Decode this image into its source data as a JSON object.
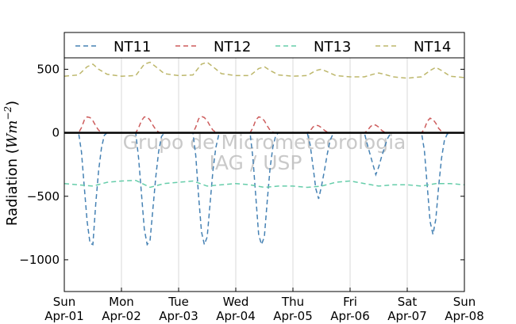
{
  "chart_data": {
    "type": "line",
    "title": "",
    "xlabel": "",
    "ylabel": "Radiation (Wm⁻²)",
    "ylabel_main": "Radiation (",
    "ylabel_unit": "Wm",
    "ylabel_exp": "−2",
    "ylabel_close": ")",
    "xlim": [
      0,
      7
    ],
    "ylim": [
      -1250,
      590
    ],
    "yticks": [
      500,
      0,
      -500,
      -1000
    ],
    "ytick_labels": [
      "500",
      "0",
      "−500",
      "−1000"
    ],
    "xticks": [
      0,
      1,
      2,
      3,
      4,
      5,
      6,
      7
    ],
    "xtick_labels_day": [
      "Sun",
      "Mon",
      "Tue",
      "Wed",
      "Thu",
      "Fri",
      "Sat",
      "Sun"
    ],
    "xtick_labels_date": [
      "Apr-01",
      "Apr-02",
      "Apr-03",
      "Apr-04",
      "Apr-05",
      "Apr-06",
      "Apr-07",
      "Apr-08"
    ],
    "grid": "vertical",
    "legend_position": "top",
    "zero_line": true,
    "watermark": [
      "Grupo de Micrometeorologia",
      "IAG / USP"
    ],
    "series": [
      {
        "name": "NT11",
        "color": "#4682b4",
        "x": [
          0,
          0.25,
          0.3,
          0.35,
          0.4,
          0.45,
          0.5,
          0.55,
          0.6,
          0.65,
          0.7,
          0.75,
          1.0,
          1.25,
          1.3,
          1.35,
          1.4,
          1.45,
          1.5,
          1.55,
          1.6,
          1.65,
          1.7,
          1.75,
          2.0,
          2.25,
          2.3,
          2.35,
          2.4,
          2.45,
          2.5,
          2.55,
          2.6,
          2.65,
          2.7,
          2.75,
          3.0,
          3.25,
          3.3,
          3.35,
          3.4,
          3.45,
          3.5,
          3.55,
          3.6,
          3.65,
          3.7,
          3.75,
          4.0,
          4.25,
          4.3,
          4.35,
          4.4,
          4.45,
          4.5,
          4.55,
          4.6,
          4.65,
          4.7,
          4.75,
          5.0,
          5.25,
          5.3,
          5.35,
          5.4,
          5.45,
          5.5,
          5.55,
          5.6,
          5.65,
          5.7,
          5.75,
          6.0,
          6.25,
          6.3,
          6.35,
          6.4,
          6.45,
          6.5,
          6.55,
          6.6,
          6.65,
          6.7,
          6.75,
          7.0
        ],
        "y": [
          0,
          0,
          -150,
          -430,
          -700,
          -870,
          -880,
          -560,
          -300,
          -120,
          -20,
          0,
          0,
          0,
          -200,
          -480,
          -760,
          -880,
          -850,
          -600,
          -350,
          -150,
          -30,
          0,
          0,
          0,
          -180,
          -500,
          -780,
          -880,
          -820,
          -560,
          -300,
          -120,
          -20,
          0,
          0,
          0,
          -200,
          -500,
          -800,
          -880,
          -820,
          -540,
          -280,
          -110,
          -20,
          0,
          0,
          0,
          -90,
          -260,
          -440,
          -520,
          -420,
          -300,
          -170,
          -60,
          -10,
          0,
          0,
          0,
          -90,
          -170,
          -250,
          -330,
          -270,
          -190,
          -120,
          -50,
          -10,
          0,
          0,
          0,
          -140,
          -420,
          -700,
          -800,
          -680,
          -420,
          -200,
          -60,
          -10,
          0,
          0
        ]
      },
      {
        "name": "NT12",
        "color": "#cd5c5c",
        "x": [
          0,
          0.25,
          0.3,
          0.35,
          0.4,
          0.45,
          0.5,
          0.55,
          0.6,
          0.65,
          0.7,
          0.75,
          1.0,
          1.25,
          1.3,
          1.35,
          1.4,
          1.45,
          1.5,
          1.55,
          1.6,
          1.65,
          1.7,
          1.75,
          2.0,
          2.25,
          2.3,
          2.35,
          2.4,
          2.45,
          2.5,
          2.55,
          2.6,
          2.65,
          2.7,
          2.75,
          3.0,
          3.25,
          3.3,
          3.35,
          3.4,
          3.45,
          3.5,
          3.55,
          3.6,
          3.65,
          3.7,
          3.75,
          4.0,
          4.25,
          4.3,
          4.35,
          4.4,
          4.45,
          4.5,
          4.55,
          4.6,
          4.65,
          4.7,
          4.75,
          5.0,
          5.25,
          5.3,
          5.35,
          5.4,
          5.45,
          5.5,
          5.55,
          5.6,
          5.65,
          5.7,
          5.75,
          6.0,
          6.25,
          6.3,
          6.35,
          6.4,
          6.45,
          6.5,
          6.55,
          6.6,
          6.65,
          6.7,
          6.75,
          7.0
        ],
        "y": [
          0,
          0,
          40,
          100,
          125,
          120,
          95,
          55,
          20,
          5,
          0,
          0,
          0,
          0,
          40,
          95,
          125,
          125,
          100,
          60,
          25,
          5,
          0,
          0,
          0,
          0,
          45,
          110,
          130,
          120,
          95,
          55,
          20,
          5,
          0,
          0,
          0,
          0,
          40,
          100,
          125,
          120,
          95,
          55,
          20,
          5,
          0,
          0,
          0,
          0,
          15,
          45,
          60,
          55,
          40,
          20,
          5,
          0,
          0,
          0,
          0,
          0,
          15,
          45,
          65,
          60,
          45,
          20,
          5,
          0,
          0,
          0,
          0,
          0,
          30,
          90,
          115,
          105,
          75,
          35,
          10,
          0,
          0,
          0,
          0
        ]
      },
      {
        "name": "NT13",
        "color": "#66cdaa",
        "x": [
          0,
          0.25,
          0.5,
          0.75,
          1.0,
          1.25,
          1.5,
          1.75,
          2.0,
          2.25,
          2.5,
          2.75,
          3.0,
          3.25,
          3.5,
          3.75,
          4.0,
          4.25,
          4.5,
          4.75,
          5.0,
          5.25,
          5.5,
          5.75,
          6.0,
          6.25,
          6.5,
          6.75,
          7.0
        ],
        "y": [
          -400,
          -410,
          -420,
          -390,
          -380,
          -375,
          -430,
          -400,
          -390,
          -380,
          -420,
          -410,
          -400,
          -410,
          -430,
          -420,
          -420,
          -430,
          -420,
          -390,
          -380,
          -400,
          -420,
          -410,
          -410,
          -420,
          -400,
          -400,
          -410
        ]
      },
      {
        "name": "NT14",
        "color": "#bdb76b",
        "x": [
          0,
          0.25,
          0.4,
          0.5,
          0.6,
          0.75,
          1.0,
          1.25,
          1.4,
          1.5,
          1.6,
          1.75,
          2.0,
          2.25,
          2.4,
          2.5,
          2.6,
          2.75,
          3.0,
          3.25,
          3.4,
          3.5,
          3.6,
          3.75,
          4.0,
          4.25,
          4.4,
          4.5,
          4.6,
          4.75,
          5.0,
          5.25,
          5.4,
          5.5,
          5.6,
          5.75,
          6.0,
          6.25,
          6.4,
          6.5,
          6.6,
          6.75,
          7.0
        ],
        "y": [
          445,
          455,
          520,
          540,
          500,
          460,
          445,
          450,
          540,
          555,
          520,
          465,
          450,
          455,
          540,
          555,
          520,
          465,
          450,
          450,
          505,
          520,
          490,
          455,
          445,
          450,
          490,
          500,
          480,
          450,
          440,
          440,
          460,
          470,
          460,
          440,
          430,
          440,
          490,
          515,
          490,
          445,
          435
        ]
      }
    ]
  }
}
